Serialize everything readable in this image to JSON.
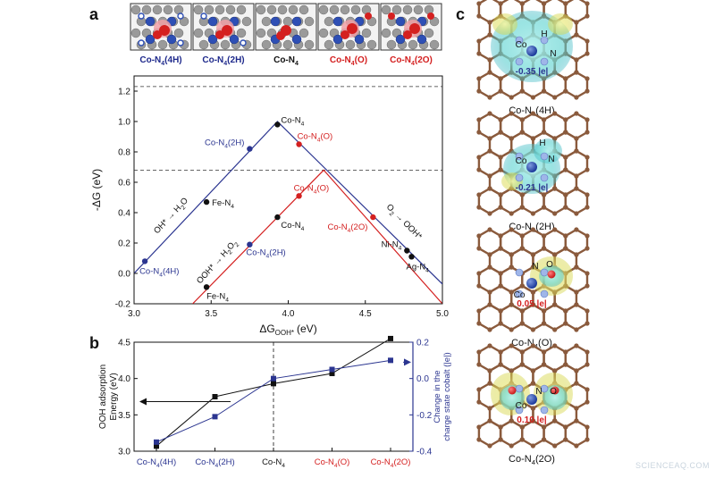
{
  "panel_labels": {
    "a": "a",
    "b": "b",
    "c": "c"
  },
  "structure_thumbnails": [
    {
      "label_main": "Co-N",
      "label_sub": "4",
      "label_suffix": "(4H)",
      "color": "#1f2a8c"
    },
    {
      "label_main": "Co-N",
      "label_sub": "4",
      "label_suffix": "(2H)",
      "color": "#1f2a8c"
    },
    {
      "label_main": "Co-N",
      "label_sub": "4",
      "label_suffix": "",
      "color": "#111111"
    },
    {
      "label_main": "Co-N",
      "label_sub": "4",
      "label_suffix": "(O)",
      "color": "#d42020"
    },
    {
      "label_main": "Co-N",
      "label_sub": "4",
      "label_suffix": "(2O)",
      "color": "#d42020"
    }
  ],
  "chart_data": [
    {
      "type": "scatter",
      "panel": "a",
      "xlabel": "ΔG",
      "xlabel_sub": "OOH*",
      "xlabel_unit": "(eV)",
      "ylabel": "-ΔG (eV)",
      "xlim": [
        3.0,
        5.0
      ],
      "ylim": [
        -0.2,
        1.3
      ],
      "x_ticks": [
        "3.0",
        "3.5",
        "4.0",
        "4.5",
        "5.0"
      ],
      "y_ticks": [
        "-0.2",
        "0.0",
        "0.2",
        "0.4",
        "0.6",
        "0.8",
        "1.0",
        "1.2"
      ],
      "x_tick_values": [
        3.0,
        3.5,
        4.0,
        4.5,
        5.0
      ],
      "y_tick_values": [
        -0.2,
        0.0,
        0.2,
        0.4,
        0.6,
        0.8,
        1.0,
        1.2
      ],
      "dashed_lines_y": [
        1.23,
        0.68
      ],
      "volcano_lines": [
        {
          "name": "blue",
          "color": "#2b3590",
          "points": [
            [
              3.0,
              0.0
            ],
            [
              3.93,
              1.0
            ],
            [
              5.0,
              -0.07
            ]
          ]
        },
        {
          "name": "red",
          "color": "#d42020",
          "points": [
            [
              3.38,
              -0.2
            ],
            [
              4.23,
              0.68
            ],
            [
              5.0,
              -0.2
            ]
          ]
        }
      ],
      "points": [
        {
          "label": "Co-N4",
          "x": 3.93,
          "y": 0.98,
          "color": "#111111"
        },
        {
          "label": "Co-N4(2H)",
          "x": 3.75,
          "y": 0.82,
          "color": "#2b3590"
        },
        {
          "label": "Co-N4(O)",
          "x": 4.07,
          "y": 0.85,
          "color": "#d42020"
        },
        {
          "label": "Fe-N4",
          "x": 3.47,
          "y": 0.47,
          "color": "#111111"
        },
        {
          "label": "Co-N4(O)",
          "x": 4.07,
          "y": 0.51,
          "color": "#d42020"
        },
        {
          "label": "Co-N4",
          "x": 3.93,
          "y": 0.37,
          "color": "#111111"
        },
        {
          "label": "Co-N4(2O)",
          "x": 4.55,
          "y": 0.37,
          "color": "#d42020"
        },
        {
          "label": "Co-N4(2H)",
          "x": 3.75,
          "y": 0.19,
          "color": "#2b3590"
        },
        {
          "label": "Ni-N4",
          "x": 4.77,
          "y": 0.15,
          "color": "#111111"
        },
        {
          "label": "Ag-N4",
          "x": 4.8,
          "y": 0.11,
          "color": "#111111"
        },
        {
          "label": "Co-N4(4H)",
          "x": 3.07,
          "y": 0.08,
          "color": "#2b3590"
        },
        {
          "label": "Fe-N4",
          "x": 3.47,
          "y": -0.09,
          "color": "#111111"
        }
      ],
      "point_labels": [
        {
          "main": "Co-N",
          "sub": "4",
          "suffix": "",
          "color": "#111111"
        },
        {
          "main": "Co-N",
          "sub": "4",
          "suffix": "(2H)",
          "color": "#2b3590"
        },
        {
          "main": "Co-N",
          "sub": "4",
          "suffix": "(O)",
          "color": "#d42020"
        },
        {
          "main": "Fe-N",
          "sub": "4",
          "suffix": "",
          "color": "#111111"
        },
        {
          "main": "Co-N",
          "sub": "4",
          "suffix": "(O)",
          "color": "#d42020"
        },
        {
          "main": "Co-N",
          "sub": "4",
          "suffix": "",
          "color": "#111111"
        },
        {
          "main": "Co-N",
          "sub": "4",
          "suffix": "(2O)",
          "color": "#d42020"
        },
        {
          "main": "Co-N",
          "sub": "4",
          "suffix": "(2H)",
          "color": "#2b3590"
        },
        {
          "main": "Ni-N",
          "sub": "4",
          "suffix": "",
          "color": "#111111"
        },
        {
          "main": "Ag-N",
          "sub": "4",
          "suffix": "",
          "color": "#111111"
        },
        {
          "main": "Co-N",
          "sub": "4",
          "suffix": "(4H)",
          "color": "#2b3590"
        },
        {
          "main": "Fe-N",
          "sub": "4",
          "suffix": "",
          "color": "#111111"
        }
      ],
      "annotations": [
        {
          "text": "OH* → H",
          "sub": "2",
          "tail": "O"
        },
        {
          "text": "OOH* → H",
          "sub": "2",
          "tail": "O",
          "sub2": "2"
        },
        {
          "text": "O",
          "sub": "2",
          "tail": " → OOH*"
        }
      ]
    },
    {
      "type": "line",
      "panel": "b",
      "categories": [
        "Co-N4(4H)",
        "Co-N4(2H)",
        "Co-N4",
        "Co-N4(O)",
        "Co-N4(2O)"
      ],
      "category_labels": [
        {
          "main": "Co-N",
          "sub": "4",
          "suffix": "(4H)",
          "color": "#2b3590"
        },
        {
          "main": "Co-N",
          "sub": "4",
          "suffix": "(2H)",
          "color": "#2b3590"
        },
        {
          "main": "Co-N",
          "sub": "4",
          "suffix": "",
          "color": "#111111"
        },
        {
          "main": "Co-N",
          "sub": "4",
          "suffix": "(O)",
          "color": "#d42020"
        },
        {
          "main": "Co-N",
          "sub": "4",
          "suffix": "(2O)",
          "color": "#d42020"
        }
      ],
      "ylabel_left": "OOH adsorption\nEnergy (eV)",
      "ylabel_right": "Change in the\ncharge state cobalt (|e|)",
      "ylim_left": [
        3.0,
        4.5
      ],
      "ylim_right": [
        -0.4,
        0.2
      ],
      "y_ticks_left": [
        "3.0",
        "3.5",
        "4.0",
        "4.5"
      ],
      "y_ticks_left_values": [
        3.0,
        3.5,
        4.0,
        4.5
      ],
      "y_ticks_right": [
        "-0.4",
        "-0.2",
        "0.0",
        "0.2"
      ],
      "y_ticks_right_values": [
        -0.4,
        -0.2,
        0.0,
        0.2
      ],
      "series": [
        {
          "axis": "left",
          "color": "#111111",
          "values": [
            3.07,
            3.75,
            3.93,
            4.07,
            4.55
          ]
        },
        {
          "axis": "right",
          "color": "#2b3590",
          "values": [
            -0.35,
            -0.21,
            0.0,
            0.05,
            0.1
          ]
        }
      ]
    }
  ],
  "panel_c": {
    "items": [
      {
        "title_main": "Co-N",
        "title_sub": "4",
        "title_suffix": "(4H)",
        "charge": "-0.35 |e|",
        "charge_color": "#2b3590",
        "atoms": [
          "Co",
          "H",
          "N"
        ]
      },
      {
        "title_main": "Co-N",
        "title_sub": "4",
        "title_suffix": "(2H)",
        "charge": "-0.21 |e|",
        "charge_color": "#2b3590",
        "atoms": [
          "Co",
          "H",
          "N"
        ]
      },
      {
        "title_main": "Co-N",
        "title_sub": "4",
        "title_suffix": "(O)",
        "charge": "0.05 |e|",
        "charge_color": "#d42020",
        "atoms": [
          "Co",
          "N",
          "O"
        ]
      },
      {
        "title_main": "Co-N",
        "title_sub": "4",
        "title_suffix": "(2O)",
        "charge": "0.10 |e|",
        "charge_color": "#d42020",
        "atoms": [
          "Co",
          "N",
          "O"
        ]
      }
    ]
  },
  "watermark": "SCIENCEAQ.COM"
}
